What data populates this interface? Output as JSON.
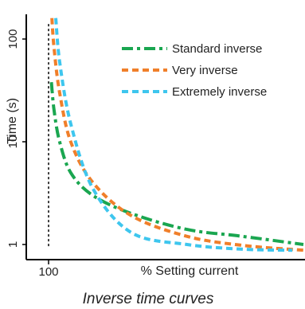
{
  "chart_data": {
    "type": "line",
    "ylabel": "Time (s)",
    "xlabel": "% Setting current",
    "caption": "Inverse time curves",
    "y_scale": "log",
    "ylim": [
      0.88,
      170
    ],
    "x_ticks": [
      {
        "value": 100,
        "label": "100"
      }
    ],
    "y_ticks": [
      {
        "value": 1,
        "label": "1"
      },
      {
        "value": 10,
        "label": "10"
      },
      {
        "value": 100,
        "label": "100"
      }
    ],
    "vertical_reference": {
      "x": 100,
      "style": "dotted",
      "y_from": 0.95,
      "y_to": 140
    },
    "series": [
      {
        "name": "Standard inverse",
        "color": "#1aa650",
        "dash": "dashdot",
        "points": [
          [
            105,
            38
          ],
          [
            110,
            20
          ],
          [
            120,
            10
          ],
          [
            140,
            5
          ],
          [
            180,
            3
          ],
          [
            250,
            2
          ],
          [
            350,
            1.4
          ],
          [
            450,
            1.2
          ],
          [
            560,
            1
          ]
        ]
      },
      {
        "name": "Very inverse",
        "color": "#f07f2a",
        "dash": "dash",
        "points": [
          [
            106,
            160
          ],
          [
            110,
            80
          ],
          [
            120,
            30
          ],
          [
            140,
            10
          ],
          [
            180,
            4
          ],
          [
            250,
            1.9
          ],
          [
            350,
            1.2
          ],
          [
            450,
            0.98
          ],
          [
            560,
            0.88
          ]
        ]
      },
      {
        "name": "Extremely inverse",
        "color": "#3ec6ee",
        "dash": "dash",
        "points": [
          [
            113,
            160
          ],
          [
            120,
            60
          ],
          [
            140,
            15
          ],
          [
            180,
            3.5
          ],
          [
            250,
            1.3
          ],
          [
            350,
            1.0
          ],
          [
            450,
            0.9
          ],
          [
            540,
            0.88
          ]
        ]
      }
    ]
  }
}
